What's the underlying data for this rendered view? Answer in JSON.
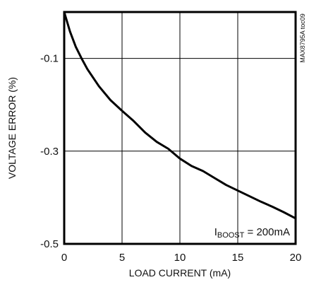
{
  "chart_data": {
    "type": "line",
    "title": "",
    "xlabel": "LOAD CURRENT (mA)",
    "ylabel": "VOLTAGE ERROR (%)",
    "xlim": [
      0,
      20
    ],
    "ylim": [
      -0.5,
      0.0
    ],
    "xticks": [
      0,
      5,
      10,
      15,
      20
    ],
    "xtick_labels": [
      "0",
      "5",
      "10",
      "15",
      "20"
    ],
    "yticks": [
      -0.1,
      -0.3,
      -0.5
    ],
    "ytick_labels": [
      "-0.1",
      "-0.3",
      "-0.5"
    ],
    "grid": true,
    "series": [
      {
        "x": [
          0,
          0.5,
          1,
          1.5,
          2,
          3,
          4,
          5,
          6,
          7,
          8,
          9,
          10,
          11,
          12,
          13,
          14,
          15,
          16,
          17,
          18,
          19,
          20
        ],
        "y": [
          0.0,
          -0.042,
          -0.075,
          -0.1,
          -0.123,
          -0.16,
          -0.19,
          -0.213,
          -0.235,
          -0.26,
          -0.28,
          -0.295,
          -0.316,
          -0.332,
          -0.343,
          -0.358,
          -0.373,
          -0.385,
          -0.397,
          -0.409,
          -0.42,
          -0.432,
          -0.445
        ]
      }
    ],
    "annotation": {
      "prefix": "I",
      "subscript": "BOOST",
      "suffix": " = 200mA"
    },
    "figure_id": "MAX8795A toc09"
  }
}
